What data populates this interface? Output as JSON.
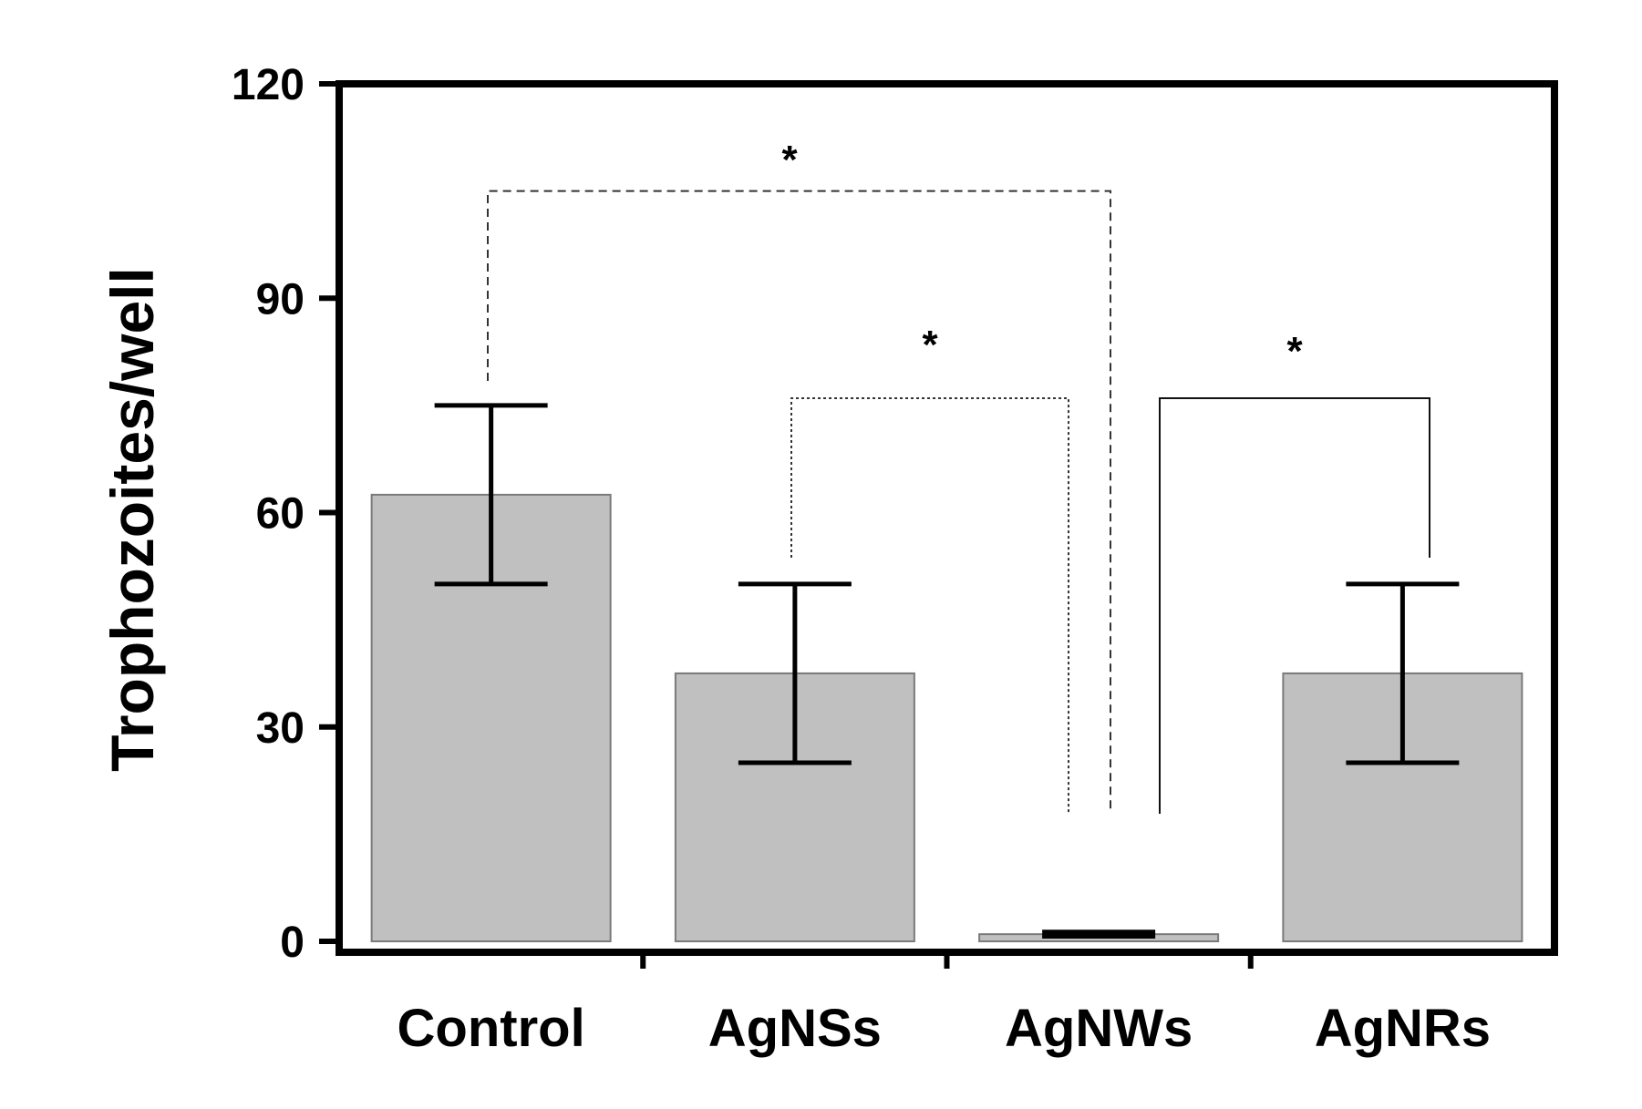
{
  "chart_data": {
    "type": "bar",
    "title": "",
    "xlabel": "",
    "ylabel": "Trophozoites/well",
    "ylim": [
      0,
      120
    ],
    "yticks": [
      0,
      30,
      60,
      90,
      120
    ],
    "ytick_labels": [
      "0",
      "30",
      "60",
      "90",
      "120"
    ],
    "categories": [
      "Control",
      "AgNSs",
      "AgNWs",
      "AgNRs"
    ],
    "values": [
      62.5,
      37.5,
      1,
      37.5
    ],
    "errors": [
      12.5,
      12.5,
      0.3,
      12.5
    ],
    "bar_color": "#c0c0c0",
    "grid": false,
    "significance": [
      {
        "from": "Control",
        "to": "AgNWs",
        "label": "*",
        "line_style": "dashed",
        "level": 105
      },
      {
        "from": "AgNSs",
        "to": "AgNWs",
        "label": "*",
        "line_style": "dotted",
        "level": 76
      },
      {
        "from": "AgNWs",
        "to": "AgNRs",
        "label": "*",
        "line_style": "solid",
        "level": 76
      }
    ]
  }
}
